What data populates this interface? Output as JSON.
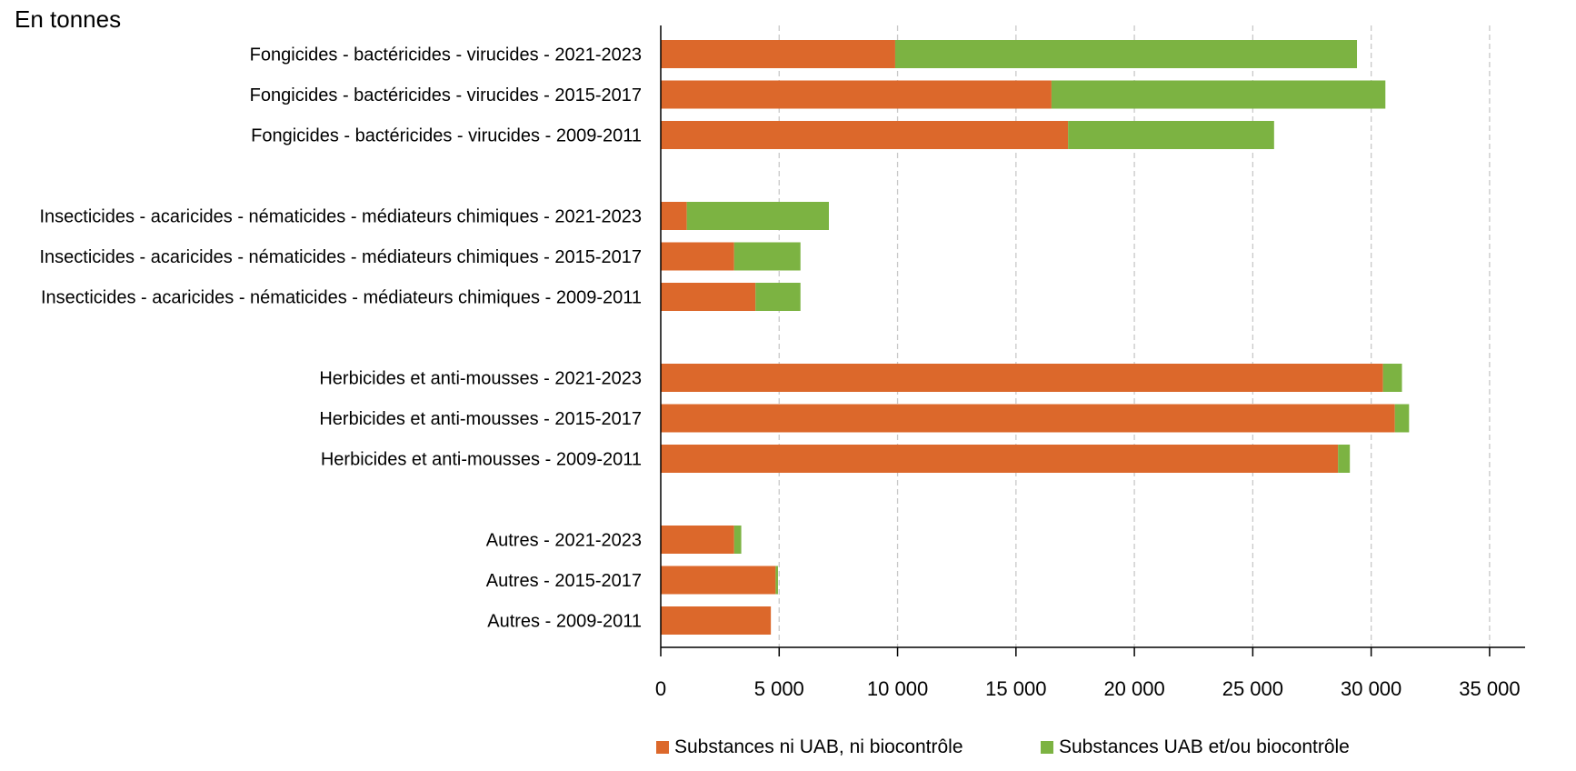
{
  "chart_data": {
    "type": "bar",
    "orientation": "horizontal",
    "stacked": true,
    "unit_label": "En tonnes",
    "categories": [
      "Fongicides - bactéricides - virucides - 2021-2023",
      "Fongicides - bactéricides - virucides - 2015-2017",
      "Fongicides - bactéricides - virucides - 2009-2011",
      "",
      "Insecticides - acaricides - nématicides - médiateurs chimiques - 2021-2023",
      "Insecticides - acaricides - nématicides - médiateurs chimiques - 2015-2017",
      "Insecticides - acaricides - nématicides - médiateurs chimiques - 2009-2011",
      "",
      "Herbicides et anti-mousses - 2021-2023",
      "Herbicides et anti-mousses - 2015-2017",
      "Herbicides et anti-mousses - 2009-2011",
      "",
      "Autres - 2021-2023",
      "Autres - 2015-2017",
      "Autres - 2009-2011"
    ],
    "series": [
      {
        "name": "Substances ni UAB, ni biocontrôle",
        "color": "#dc682b",
        "values": [
          9900,
          16500,
          17200,
          null,
          1100,
          3100,
          4000,
          null,
          30500,
          31000,
          28600,
          null,
          3100,
          4850,
          4650
        ]
      },
      {
        "name": "Substances UAB et/ou biocontrôle",
        "color": "#7cb342",
        "values": [
          19500,
          14100,
          8700,
          null,
          6000,
          2800,
          1900,
          null,
          800,
          600,
          500,
          null,
          300,
          100,
          0
        ]
      }
    ],
    "xlim": [
      0,
      36500
    ],
    "xticks": [
      0,
      5000,
      10000,
      15000,
      20000,
      25000,
      30000,
      35000
    ],
    "xtick_labels": [
      "0",
      "5 000",
      "10 000",
      "15 000",
      "20 000",
      "25 000",
      "30 000",
      "35 000"
    ],
    "grid": "vertical dashed",
    "legend_position": "bottom"
  }
}
